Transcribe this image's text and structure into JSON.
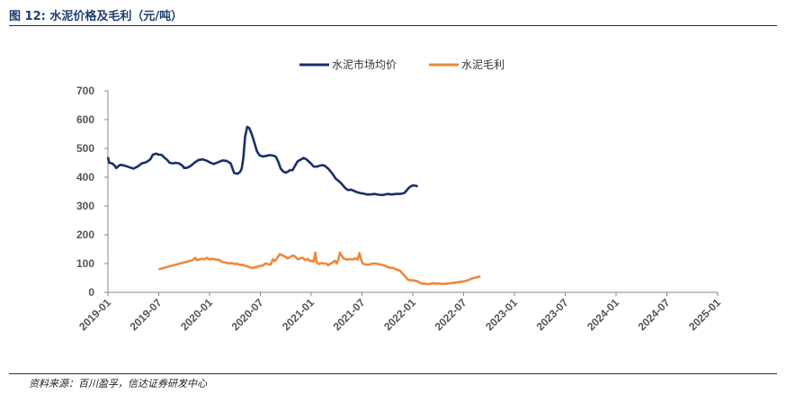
{
  "header": {
    "title": "图 12:  水泥价格及毛利（元/吨）"
  },
  "footer": {
    "source": "资料来源：百川盈孚，信达证券研发中心"
  },
  "chart_data": {
    "type": "line",
    "ylim": [
      0,
      700
    ],
    "yticks": [
      "0",
      "100",
      "200",
      "300",
      "400",
      "500",
      "600",
      "700"
    ],
    "xticks": [
      "2019-01",
      "2019-07",
      "2020-01",
      "2020-07",
      "2021-01",
      "2021-07",
      "2022-01",
      "2022-07",
      "2023-01",
      "2023-07",
      "2024-01",
      "2024-07",
      "2025-01"
    ],
    "legend_position": "top-center",
    "grid": false,
    "series": [
      {
        "name": "水泥市场均价",
        "color": "#1a2f6b",
        "points": [
          [
            0,
            470
          ],
          [
            0.15,
            450
          ],
          [
            0.5,
            448
          ],
          [
            0.8,
            440
          ],
          [
            1.0,
            432
          ],
          [
            1.3,
            440
          ],
          [
            1.5,
            443
          ],
          [
            2.0,
            440
          ],
          [
            2.5,
            435
          ],
          [
            3.0,
            430
          ],
          [
            3.5,
            437
          ],
          [
            4.0,
            448
          ],
          [
            4.5,
            452
          ],
          [
            5.0,
            462
          ],
          [
            5.3,
            478
          ],
          [
            5.7,
            482
          ],
          [
            6.0,
            478
          ],
          [
            6.3,
            478
          ],
          [
            6.6,
            470
          ],
          [
            7.0,
            460
          ],
          [
            7.3,
            450
          ],
          [
            7.7,
            448
          ],
          [
            8.0,
            450
          ],
          [
            8.4,
            448
          ],
          [
            8.8,
            440
          ],
          [
            9.0,
            432
          ],
          [
            9.4,
            433
          ],
          [
            9.8,
            440
          ],
          [
            10.2,
            450
          ],
          [
            10.7,
            460
          ],
          [
            11.2,
            462
          ],
          [
            11.7,
            457
          ],
          [
            12.0,
            452
          ],
          [
            12.5,
            446
          ],
          [
            13.0,
            452
          ],
          [
            13.5,
            458
          ],
          [
            14.0,
            457
          ],
          [
            14.5,
            448
          ],
          [
            14.9,
            415
          ],
          [
            15.3,
            412
          ],
          [
            15.6,
            418
          ],
          [
            15.8,
            430
          ],
          [
            16.0,
            470
          ],
          [
            16.2,
            540
          ],
          [
            16.45,
            575
          ],
          [
            16.7,
            570
          ],
          [
            17.0,
            548
          ],
          [
            17.3,
            520
          ],
          [
            17.6,
            490
          ],
          [
            17.9,
            476
          ],
          [
            18.3,
            472
          ],
          [
            18.7,
            474
          ],
          [
            19.1,
            477
          ],
          [
            19.5,
            475
          ],
          [
            19.8,
            472
          ],
          [
            20.1,
            455
          ],
          [
            20.4,
            430
          ],
          [
            20.7,
            420
          ],
          [
            21.0,
            416
          ],
          [
            21.3,
            420
          ],
          [
            21.5,
            425
          ],
          [
            21.8,
            424
          ],
          [
            22.1,
            440
          ],
          [
            22.4,
            455
          ],
          [
            22.8,
            462
          ],
          [
            23.1,
            467
          ],
          [
            23.4,
            463
          ],
          [
            23.7,
            455
          ],
          [
            24.0,
            447
          ],
          [
            24.3,
            437
          ],
          [
            24.7,
            437
          ],
          [
            25.0,
            440
          ],
          [
            25.3,
            442
          ],
          [
            25.6,
            440
          ],
          [
            26.0,
            430
          ],
          [
            26.3,
            420
          ],
          [
            26.6,
            408
          ],
          [
            26.9,
            395
          ],
          [
            27.2,
            388
          ],
          [
            27.5,
            380
          ],
          [
            27.8,
            370
          ],
          [
            28.1,
            360
          ],
          [
            28.4,
            355
          ],
          [
            28.7,
            357
          ],
          [
            29.0,
            353
          ],
          [
            29.4,
            348
          ],
          [
            29.8,
            345
          ],
          [
            30.2,
            343
          ],
          [
            30.6,
            340
          ],
          [
            31.0,
            340
          ],
          [
            31.5,
            342
          ],
          [
            32.0,
            339
          ],
          [
            32.5,
            338
          ],
          [
            33.0,
            342
          ],
          [
            33.5,
            340
          ],
          [
            34.0,
            342
          ],
          [
            34.5,
            342
          ],
          [
            35.0,
            345
          ],
          [
            35.3,
            355
          ],
          [
            35.6,
            365
          ],
          [
            36.0,
            372
          ],
          [
            36.4,
            370
          ],
          [
            36.6,
            368
          ]
        ]
      },
      {
        "name": "水泥毛利",
        "color": "#f0883a",
        "points": [
          [
            6.0,
            80
          ],
          [
            7.0,
            88
          ],
          [
            8.0,
            96
          ],
          [
            9.0,
            104
          ],
          [
            10.0,
            112
          ],
          [
            10.3,
            120
          ],
          [
            10.5,
            112
          ],
          [
            10.8,
            114
          ],
          [
            11.1,
            117
          ],
          [
            11.4,
            115
          ],
          [
            11.7,
            120
          ],
          [
            12.0,
            114
          ],
          [
            12.3,
            117
          ],
          [
            12.6,
            115
          ],
          [
            12.9,
            113
          ],
          [
            13.2,
            112
          ],
          [
            13.4,
            106
          ],
          [
            13.6,
            105
          ],
          [
            14.0,
            103
          ],
          [
            14.3,
            100
          ],
          [
            14.6,
            102
          ],
          [
            15.0,
            98
          ],
          [
            15.3,
            99
          ],
          [
            15.6,
            95
          ],
          [
            15.9,
            96
          ],
          [
            16.2,
            92
          ],
          [
            16.5,
            90
          ],
          [
            16.8,
            87
          ],
          [
            17.1,
            84
          ],
          [
            17.3,
            88
          ],
          [
            17.5,
            86
          ],
          [
            17.7,
            90
          ],
          [
            18.0,
            92
          ],
          [
            18.3,
            93
          ],
          [
            18.6,
            100
          ],
          [
            18.9,
            98
          ],
          [
            19.2,
            96
          ],
          [
            19.5,
            115
          ],
          [
            19.7,
            108
          ],
          [
            20.0,
            120
          ],
          [
            20.3,
            133
          ],
          [
            20.6,
            128
          ],
          [
            20.9,
            125
          ],
          [
            21.2,
            118
          ],
          [
            21.5,
            122
          ],
          [
            21.8,
            128
          ],
          [
            22.1,
            125
          ],
          [
            22.4,
            115
          ],
          [
            22.7,
            118
          ],
          [
            23.0,
            120
          ],
          [
            23.3,
            112
          ],
          [
            23.6,
            116
          ],
          [
            23.9,
            108
          ],
          [
            24.1,
            110
          ],
          [
            24.3,
            107
          ],
          [
            24.5,
            138
          ],
          [
            24.65,
            105
          ],
          [
            24.9,
            98
          ],
          [
            25.2,
            102
          ],
          [
            25.5,
            100
          ],
          [
            25.8,
            100
          ],
          [
            26.0,
            94
          ],
          [
            26.2,
            98
          ],
          [
            26.5,
            103
          ],
          [
            26.8,
            110
          ],
          [
            27.0,
            100
          ],
          [
            27.2,
            112
          ],
          [
            27.4,
            138
          ],
          [
            27.6,
            128
          ],
          [
            27.8,
            118
          ],
          [
            28.0,
            116
          ],
          [
            28.3,
            113
          ],
          [
            28.6,
            116
          ],
          [
            28.9,
            114
          ],
          [
            29.2,
            118
          ],
          [
            29.5,
            114
          ],
          [
            29.7,
            137
          ],
          [
            29.9,
            113
          ],
          [
            30.1,
            100
          ],
          [
            30.4,
            97
          ],
          [
            30.7,
            96
          ],
          [
            31.0,
            98
          ],
          [
            31.3,
            100
          ],
          [
            31.6,
            100
          ],
          [
            31.9,
            98
          ],
          [
            32.2,
            97
          ],
          [
            32.5,
            94
          ],
          [
            32.8,
            92
          ],
          [
            33.1,
            87
          ],
          [
            33.4,
            85
          ],
          [
            33.7,
            85
          ],
          [
            34.0,
            80
          ],
          [
            34.2,
            78
          ],
          [
            34.5,
            75
          ],
          [
            34.8,
            65
          ],
          [
            35.1,
            55
          ],
          [
            35.4,
            45
          ],
          [
            35.7,
            42
          ],
          [
            36.0,
            42
          ],
          [
            36.3,
            40
          ],
          [
            36.6,
            38
          ],
          [
            36.9,
            32
          ],
          [
            37.2,
            30
          ],
          [
            37.5,
            30
          ],
          [
            37.8,
            28
          ],
          [
            38.1,
            30
          ],
          [
            38.4,
            32
          ],
          [
            38.7,
            30
          ],
          [
            39.0,
            31
          ],
          [
            39.3,
            30
          ],
          [
            39.6,
            29
          ],
          [
            39.9,
            30
          ],
          [
            40.2,
            31
          ],
          [
            40.5,
            32
          ],
          [
            40.8,
            33
          ],
          [
            41.1,
            34
          ],
          [
            41.4,
            35
          ],
          [
            41.7,
            37
          ],
          [
            42.0,
            38
          ],
          [
            42.3,
            40
          ],
          [
            42.6,
            43
          ],
          [
            42.9,
            47
          ],
          [
            43.2,
            50
          ],
          [
            43.5,
            52
          ],
          [
            43.8,
            54
          ],
          [
            44.0,
            55
          ]
        ]
      }
    ]
  }
}
